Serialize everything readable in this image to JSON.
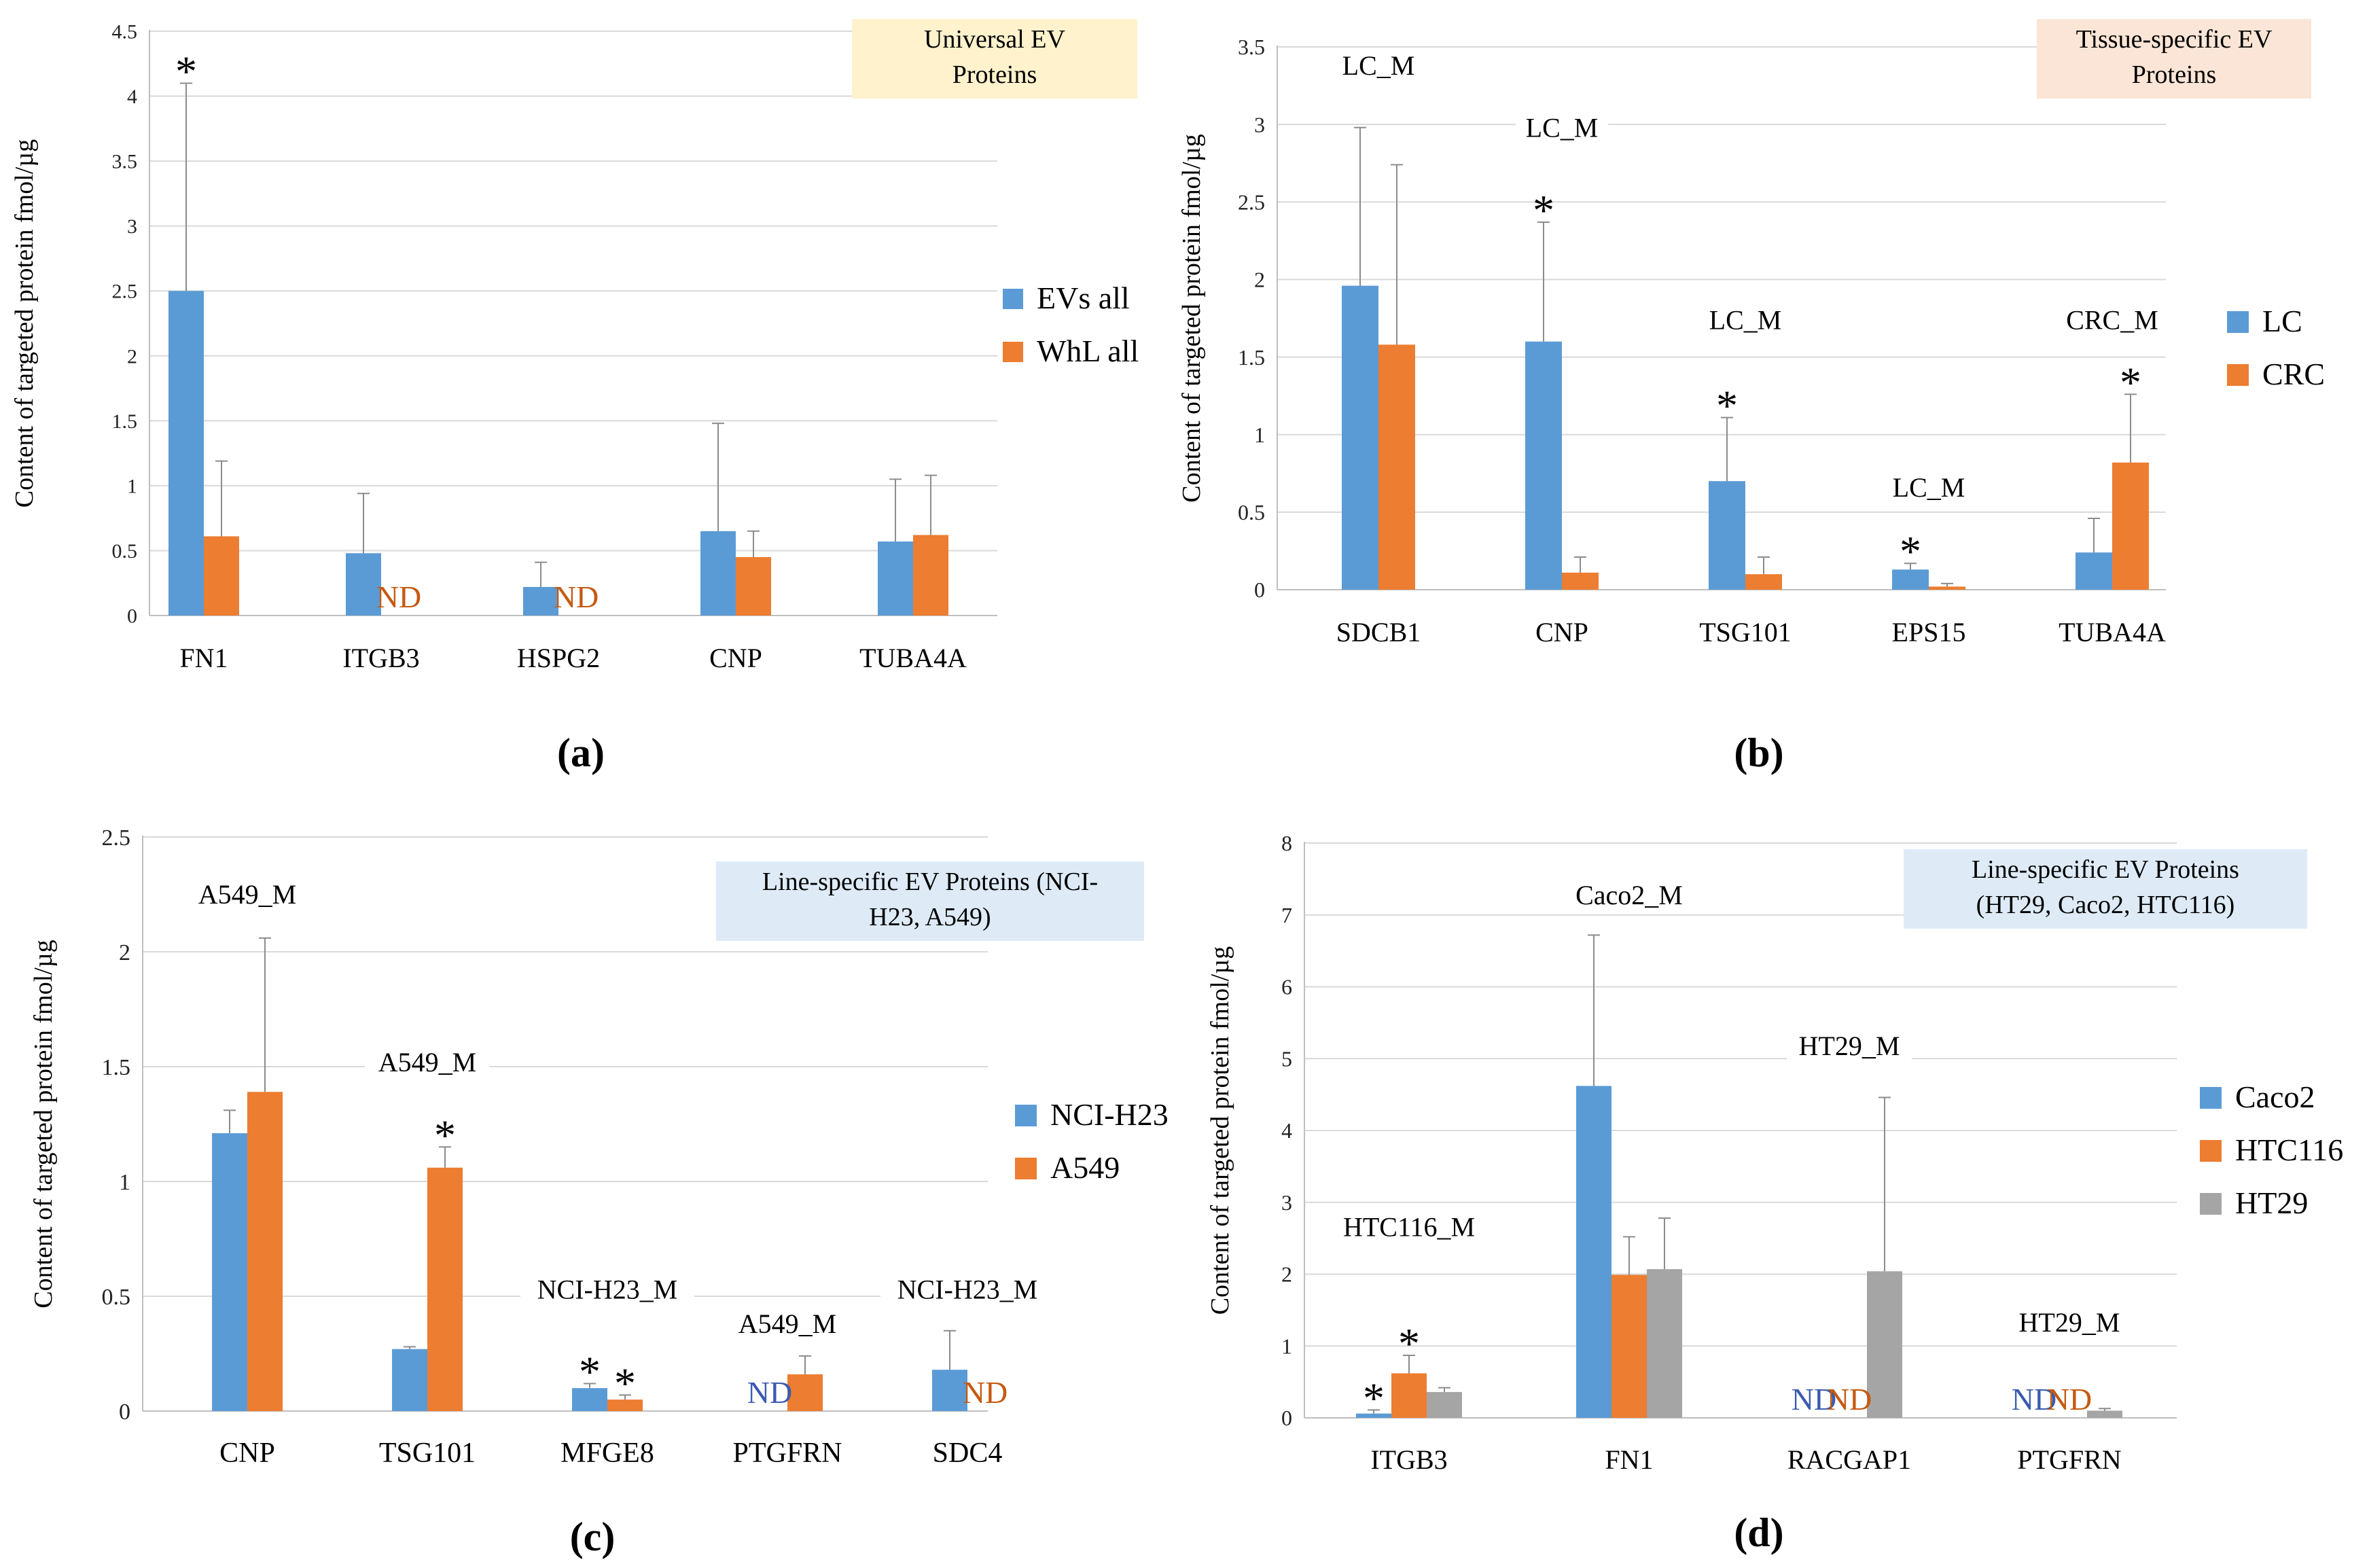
{
  "colors": {
    "blue": "#5B9BD5",
    "orange": "#ED7D31",
    "gray": "#A5A5A5",
    "nd_blue": "#3A5BB0",
    "nd_orange": "#C55A11",
    "box_yellow": "#FFF2CC",
    "box_peach": "#FBE5D6",
    "box_blue": "#DEEBF7"
  },
  "chart_data": [
    {
      "panel": "(a)",
      "type": "bar",
      "ylabel": "Content of targeted protein fmol/µg",
      "ylim": [
        0,
        4.5
      ],
      "ytick_step": 0.5,
      "yticks": [
        "0",
        "0.5",
        "1",
        "1.5",
        "2",
        "2.5",
        "3",
        "3.5",
        "4",
        "4.5"
      ],
      "categories": [
        "FN1",
        "ITGB3",
        "HSPG2",
        "CNP",
        "TUBA4A"
      ],
      "series": [
        {
          "name": "EVs all",
          "color": "#5B9BD5",
          "values": [
            2.5,
            0.48,
            0.22,
            0.65,
            0.57
          ],
          "errors": [
            1.6,
            0.46,
            0.19,
            0.83,
            0.48
          ]
        },
        {
          "name": "WhL all",
          "color": "#ED7D31",
          "values": [
            0.61,
            null,
            null,
            0.45,
            0.62
          ],
          "errors": [
            0.58,
            null,
            null,
            0.2,
            0.46
          ]
        }
      ],
      "annotations": [
        {
          "text": "*",
          "category": 0,
          "series": 0
        },
        {
          "text": "ND",
          "category": 1,
          "series": 1
        },
        {
          "text": "ND",
          "category": 2,
          "series": 1
        }
      ],
      "box_label": [
        "Universal EV",
        "Proteins"
      ],
      "legend": "right"
    },
    {
      "panel": "(b)",
      "type": "bar",
      "ylabel": "Content of targeted protein fmol/µg",
      "ylim": [
        0,
        3.5
      ],
      "ytick_step": 0.5,
      "yticks": [
        "0",
        "0.5",
        "1",
        "1.5",
        "2",
        "2.5",
        "3",
        "3.5"
      ],
      "categories": [
        "SDCB1",
        "CNP",
        "TSG101",
        "EPS15",
        "TUBA4A"
      ],
      "series": [
        {
          "name": "LC",
          "color": "#5B9BD5",
          "values": [
            1.96,
            1.6,
            0.7,
            0.13,
            0.24
          ],
          "errors": [
            1.02,
            0.77,
            0.41,
            0.04,
            0.22
          ]
        },
        {
          "name": "CRC",
          "color": "#ED7D31",
          "values": [
            1.58,
            0.11,
            0.1,
            0.02,
            0.82
          ],
          "errors": [
            1.16,
            0.1,
            0.11,
            0.02,
            0.44
          ]
        }
      ],
      "annotations": [
        {
          "text": "*",
          "category": 1,
          "series": 0
        },
        {
          "text": "*",
          "category": 2,
          "series": 0
        },
        {
          "text": "*",
          "category": 3,
          "series": 0
        },
        {
          "text": "*",
          "category": 4,
          "series": 1
        }
      ],
      "group_labels": [
        {
          "category": 0,
          "text": "LC_M",
          "y": 3.32
        },
        {
          "category": 1,
          "text": "LC_M",
          "y": 2.92
        },
        {
          "category": 2,
          "text": "LC_M",
          "y": 1.68
        },
        {
          "category": 3,
          "text": "LC_M",
          "y": 0.6
        },
        {
          "category": 4,
          "text": "CRC_M",
          "y": 1.68
        }
      ],
      "box_label": [
        "Tissue-specific  EV",
        "Proteins"
      ],
      "legend": "right"
    },
    {
      "panel": "(c)",
      "type": "bar",
      "ylabel": "Content of targeted protein fmol/µg",
      "ylim": [
        0,
        2.5
      ],
      "ytick_step": 0.5,
      "yticks": [
        "0",
        "0.5",
        "1",
        "1.5",
        "2",
        "2.5"
      ],
      "categories": [
        "CNP",
        "TSG101",
        "MFGE8",
        "PTGFRN",
        "SDC4"
      ],
      "series": [
        {
          "name": "NCI-H23",
          "color": "#5B9BD5",
          "values": [
            1.21,
            0.27,
            0.1,
            null,
            0.18
          ],
          "errors": [
            0.1,
            0.01,
            0.02,
            null,
            0.17
          ]
        },
        {
          "name": "A549",
          "color": "#ED7D31",
          "values": [
            1.39,
            1.06,
            0.05,
            0.16,
            null
          ],
          "errors": [
            0.67,
            0.09,
            0.02,
            0.08,
            null
          ]
        }
      ],
      "annotations": [
        {
          "text": "*",
          "category": 1,
          "series": 1
        },
        {
          "text": "*",
          "category": 2,
          "series": 0
        },
        {
          "text": "*",
          "category": 2,
          "series": 1
        },
        {
          "text": "ND",
          "category": 3,
          "series": 0
        },
        {
          "text": "ND",
          "category": 4,
          "series": 1
        }
      ],
      "group_labels": [
        {
          "category": 0,
          "text": "A549_M",
          "y": 2.21
        },
        {
          "category": 1,
          "text": "A549_M",
          "y": 1.48
        },
        {
          "category": 2,
          "text": "NCI-H23_M",
          "y": 0.49
        },
        {
          "category": 3,
          "text": "A549_M",
          "y": 0.34
        },
        {
          "category": 4,
          "text": "NCI-H23_M",
          "y": 0.49
        }
      ],
      "box_label": [
        "Line-specific EV Proteins (NCI-",
        "H23, A549)"
      ],
      "legend": "right"
    },
    {
      "panel": "(d)",
      "type": "bar",
      "ylabel": "Content of targeted protein fmol/µg",
      "ylim": [
        0,
        8
      ],
      "ytick_step": 1,
      "yticks": [
        "0",
        "1",
        "2",
        "3",
        "4",
        "5",
        "6",
        "7",
        "8"
      ],
      "categories": [
        "ITGB3",
        "FN1",
        "RACGAP1",
        "PTGFRN"
      ],
      "series": [
        {
          "name": "Caco2",
          "color": "#5B9BD5",
          "values": [
            0.06,
            4.62,
            null,
            null
          ],
          "errors": [
            0.05,
            2.1,
            null,
            null
          ]
        },
        {
          "name": "HTC116",
          "color": "#ED7D31",
          "values": [
            0.62,
            1.99,
            null,
            null
          ],
          "errors": [
            0.25,
            0.53,
            null,
            null
          ]
        },
        {
          "name": "HT29",
          "color": "#A5A5A5",
          "values": [
            0.36,
            2.07,
            2.04,
            0.1
          ],
          "errors": [
            0.06,
            0.71,
            2.42,
            0.03
          ]
        }
      ],
      "annotations": [
        {
          "text": "*",
          "category": 0,
          "series": 0
        },
        {
          "text": "*",
          "category": 0,
          "series": 1
        },
        {
          "text": "ND",
          "category": 2,
          "series": 0
        },
        {
          "text": "ND",
          "category": 2,
          "series": 1
        },
        {
          "text": "ND",
          "category": 3,
          "series": 0
        },
        {
          "text": "ND",
          "category": 3,
          "series": 1
        }
      ],
      "group_labels": [
        {
          "category": 0,
          "text": "HTC116_M",
          "y": 2.53
        },
        {
          "category": 1,
          "text": "Caco2_M",
          "y": 7.15
        },
        {
          "category": 2,
          "text": "HT29_M",
          "y": 5.05
        },
        {
          "category": 3,
          "text": "HT29_M",
          "y": 1.2
        }
      ],
      "box_label": [
        "Line-specific EV Proteins",
        "(HT29, Caco2, HTC116)"
      ],
      "legend": "right"
    }
  ]
}
